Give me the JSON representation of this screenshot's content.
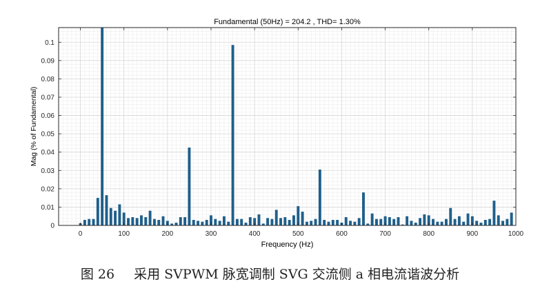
{
  "chart_data": {
    "type": "bar",
    "title": "Fundamental (50Hz) = 204.2 , THD= 1.30%",
    "xlabel": "Frequency (Hz)",
    "ylabel": "Mag (% of Fundamental)",
    "xlim": [
      -50,
      1000
    ],
    "ylim": [
      0,
      0.108
    ],
    "grid": true,
    "minor_grid": true,
    "bar_color": "#1f5f8b",
    "x_ticks": [
      0,
      100,
      200,
      300,
      400,
      500,
      600,
      700,
      800,
      900,
      1000
    ],
    "y_ticks": [
      0,
      0.01,
      0.02,
      0.03,
      0.04,
      0.05,
      0.06,
      0.07,
      0.08,
      0.09,
      0.1
    ],
    "x": [
      0,
      10,
      20,
      30,
      40,
      50,
      60,
      70,
      80,
      90,
      100,
      110,
      120,
      130,
      140,
      150,
      160,
      170,
      180,
      190,
      200,
      210,
      220,
      230,
      240,
      250,
      260,
      270,
      280,
      290,
      300,
      310,
      320,
      330,
      340,
      350,
      360,
      370,
      380,
      390,
      400,
      410,
      420,
      430,
      440,
      450,
      460,
      470,
      480,
      490,
      500,
      510,
      520,
      530,
      540,
      550,
      560,
      570,
      580,
      590,
      600,
      610,
      620,
      630,
      640,
      650,
      660,
      670,
      680,
      690,
      700,
      710,
      720,
      730,
      740,
      750,
      760,
      770,
      780,
      790,
      800,
      810,
      820,
      830,
      840,
      850,
      860,
      870,
      880,
      890,
      900,
      910,
      920,
      930,
      940,
      950,
      960,
      970,
      980,
      990
    ],
    "values": [
      0.0012,
      0.003,
      0.0035,
      0.0035,
      0.015,
      0.108,
      0.0165,
      0.0095,
      0.008,
      0.0115,
      0.007,
      0.004,
      0.0045,
      0.004,
      0.0055,
      0.0045,
      0.008,
      0.0035,
      0.003,
      0.005,
      0.0025,
      0.001,
      0.0015,
      0.0045,
      0.0045,
      0.0425,
      0.003,
      0.0025,
      0.002,
      0.003,
      0.0055,
      0.0035,
      0.0025,
      0.005,
      0.002,
      0.0985,
      0.0035,
      0.0035,
      0.0015,
      0.0045,
      0.004,
      0.006,
      0.001,
      0.004,
      0.0035,
      0.0085,
      0.004,
      0.0045,
      0.003,
      0.0055,
      0.0105,
      0.0075,
      0.002,
      0.0025,
      0.0035,
      0.0305,
      0.003,
      0.002,
      0.003,
      0.003,
      0.0015,
      0.0045,
      0.0025,
      0.002,
      0.004,
      0.018,
      0.001,
      0.0065,
      0.0035,
      0.0035,
      0.005,
      0.0045,
      0.0035,
      0.0045,
      0.0005,
      0.005,
      0.0025,
      0.0015,
      0.004,
      0.006,
      0.0055,
      0.0035,
      0.002,
      0.002,
      0.0035,
      0.0095,
      0.0035,
      0.005,
      0.002,
      0.0065,
      0.005,
      0.0025,
      0.0015,
      0.003,
      0.0035,
      0.0135,
      0.0055,
      0.0025,
      0.0035,
      0.007
    ]
  },
  "caption": {
    "number": "图 26",
    "text": "采用 SVPWM 脉宽调制 SVG 交流侧 a 相电流谐波分析"
  }
}
